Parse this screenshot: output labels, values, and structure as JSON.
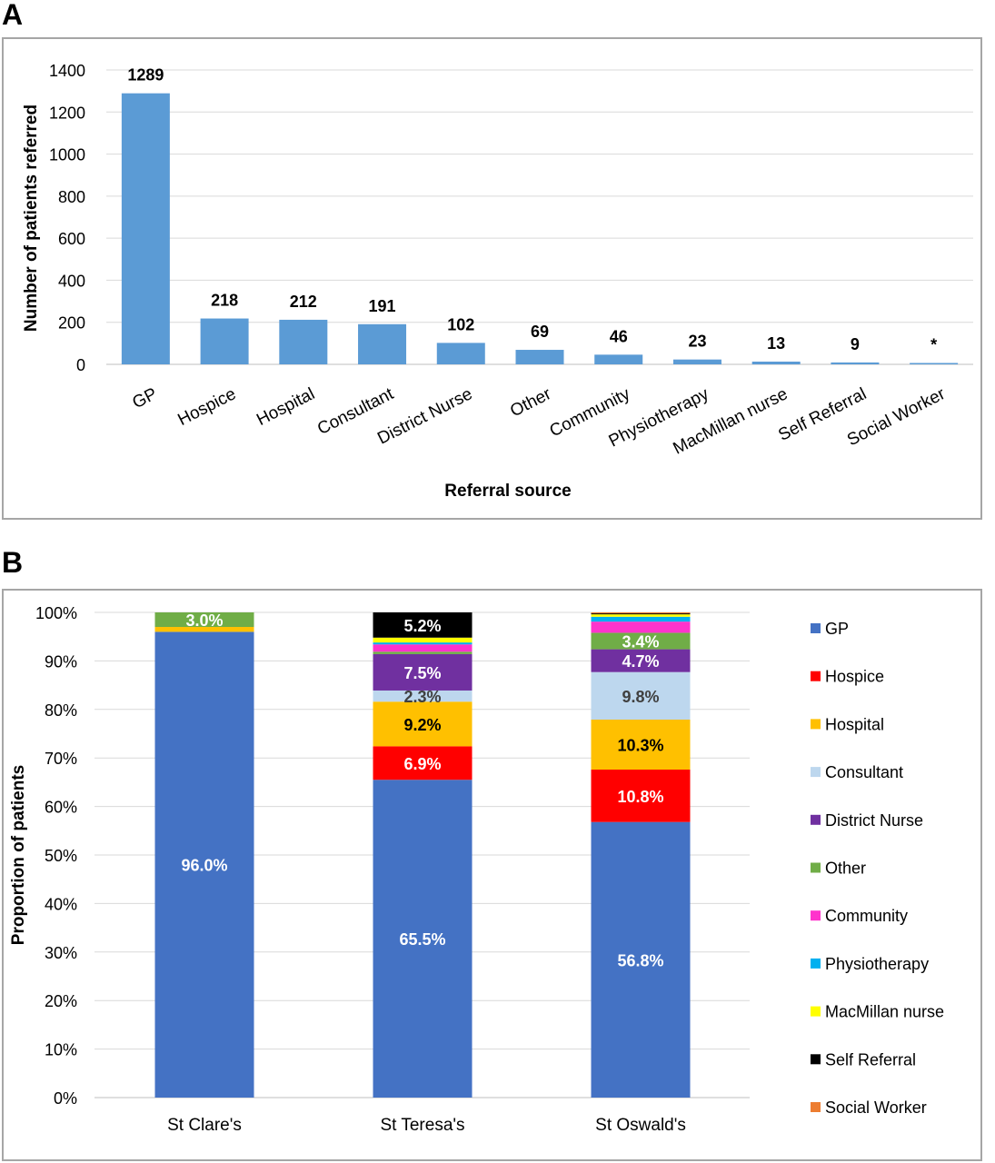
{
  "panel_a_letter": "A",
  "panel_b_letter": "B",
  "chart_data": [
    {
      "type": "bar",
      "categories": [
        "GP",
        "Hospice",
        "Hospital",
        "Consultant",
        "District Nurse",
        "Other",
        "Community",
        "Physiotherapy",
        "MacMillan nurse",
        "Self Referral",
        "Social Worker"
      ],
      "values": [
        1289,
        218,
        212,
        191,
        102,
        69,
        46,
        23,
        13,
        9,
        4
      ],
      "data_labels": [
        "1289",
        "218",
        "212",
        "191",
        "102",
        "69",
        "46",
        "23",
        "13",
        "9",
        "*"
      ],
      "title": "",
      "xlabel": "Referral source",
      "ylabel": "Number of patients referred",
      "ylim": [
        0,
        1400
      ],
      "yticks": [
        "0",
        "200",
        "400",
        "600",
        "800",
        "1000",
        "1200",
        "1400"
      ],
      "grid": true,
      "color": "#5b9bd5"
    },
    {
      "type": "bar",
      "stacked": true,
      "categories": [
        "St Clare's",
        "St Teresa's",
        "St Oswald's"
      ],
      "ylabel": "Proportion of patients",
      "ylim": [
        0,
        100
      ],
      "yticks": [
        "0%",
        "10%",
        "20%",
        "30%",
        "40%",
        "50%",
        "60%",
        "70%",
        "80%",
        "90%",
        "100%"
      ],
      "grid": true,
      "legend_position": "right",
      "series": [
        {
          "name": "GP",
          "color": "#4472c4",
          "values": [
            96.0,
            65.5,
            56.8
          ],
          "labels": [
            "96.0%",
            "65.5%",
            "56.8%"
          ]
        },
        {
          "name": "Hospice",
          "color": "#ff0000",
          "values": [
            0,
            6.9,
            10.8
          ],
          "labels": [
            "",
            "6.9%",
            "10.8%"
          ]
        },
        {
          "name": "Hospital",
          "color": "#ffc000",
          "values": [
            1.0,
            9.2,
            10.3
          ],
          "labels": [
            "",
            "9.2%",
            "10.3%"
          ]
        },
        {
          "name": "Consultant",
          "color": "#bdd7ee",
          "values": [
            0,
            2.3,
            9.8
          ],
          "labels": [
            "",
            "2.3%",
            "9.8%"
          ]
        },
        {
          "name": "District Nurse",
          "color": "#7030a0",
          "values": [
            0,
            7.5,
            4.7
          ],
          "labels": [
            "",
            "7.5%",
            "4.7%"
          ]
        },
        {
          "name": "Other",
          "color": "#70ad47",
          "values": [
            3.0,
            0.5,
            3.4
          ],
          "labels": [
            "3.0%",
            "",
            "3.4%"
          ]
        },
        {
          "name": "Community",
          "color": "#ff33cc",
          "values": [
            0,
            1.5,
            2.3
          ],
          "labels": [
            "",
            "",
            ""
          ]
        },
        {
          "name": "Physiotherapy",
          "color": "#00b0f0",
          "values": [
            0,
            0.4,
            1.0
          ],
          "labels": [
            "",
            "",
            ""
          ]
        },
        {
          "name": "MacMillan nurse",
          "color": "#ffff00",
          "values": [
            0,
            1.0,
            0.5
          ],
          "labels": [
            "",
            "",
            ""
          ]
        },
        {
          "name": "Self Referral",
          "color": "#000000",
          "values": [
            0,
            5.2,
            0.2
          ],
          "labels": [
            "",
            "5.2%",
            ""
          ]
        },
        {
          "name": "Social Worker",
          "color": "#ed7d31",
          "values": [
            0,
            0,
            0.2
          ],
          "labels": [
            "",
            "",
            ""
          ]
        }
      ]
    }
  ]
}
